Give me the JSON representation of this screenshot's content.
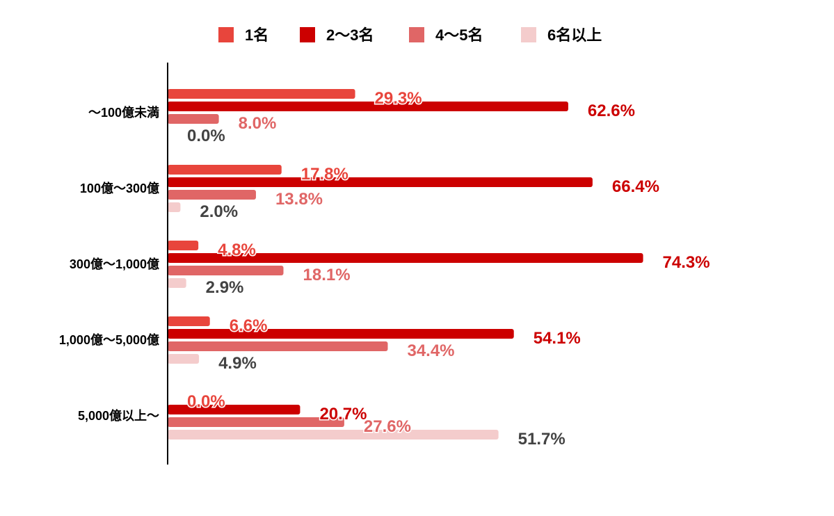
{
  "chart_data": {
    "type": "bar",
    "orientation": "horizontal",
    "categories": [
      "～100億未満",
      "100億～300億",
      "300億～1,000億",
      "1,000億～5,000億",
      "5,000億以上～"
    ],
    "series": [
      {
        "name": "1名",
        "color": "#e8453c",
        "values": [
          29.3,
          17.8,
          4.8,
          6.6,
          0.0
        ],
        "labels": [
          "29.3%",
          "17.8%",
          "4.8%",
          "6.6%",
          "0.0%"
        ]
      },
      {
        "name": "2～3名",
        "color": "#cc0000",
        "values": [
          62.6,
          66.4,
          74.3,
          54.1,
          20.7
        ],
        "labels": [
          "62.6%",
          "66.4%",
          "74.3%",
          "54.1%",
          "20.7%"
        ]
      },
      {
        "name": "4～5名",
        "color": "#e06666",
        "values": [
          8.0,
          13.8,
          18.1,
          34.4,
          27.6
        ],
        "labels": [
          "8.0%",
          "13.8%",
          "18.1%",
          "34.4%",
          "27.6%"
        ]
      },
      {
        "name": "6名以上",
        "color": "#f4cccc",
        "label_color": "#434343",
        "values": [
          0.0,
          2.0,
          2.9,
          4.9,
          51.7
        ],
        "labels": [
          "0.0%",
          "2.0%",
          "2.9%",
          "4.9%",
          "51.7%"
        ]
      }
    ],
    "xlim": [
      0,
      100
    ],
    "grid": false,
    "legend": "top-center",
    "unit": "%"
  }
}
